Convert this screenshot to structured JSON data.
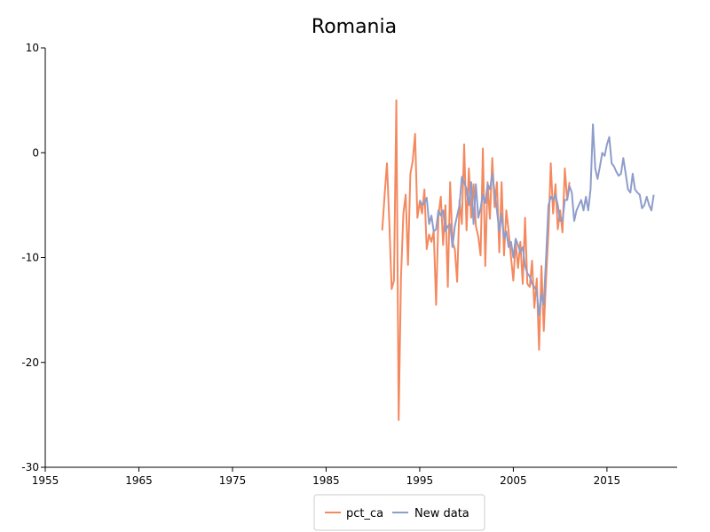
{
  "chart_data": {
    "type": "line",
    "title": "Romania",
    "xlabel": "",
    "ylabel": "",
    "xlim": [
      1955,
      2022.5
    ],
    "ylim": [
      -30,
      10
    ],
    "xticks": [
      1955,
      1965,
      1975,
      1985,
      1995,
      2005,
      2015
    ],
    "yticks": [
      10,
      0,
      -10,
      -20,
      -30
    ],
    "grid": false,
    "legend_position": "bottom",
    "series": [
      {
        "name": "pct_ca",
        "color": "#f4895f",
        "x": [
          1991.0,
          1991.25,
          1991.5,
          1991.75,
          1992.0,
          1992.25,
          1992.5,
          1992.75,
          1993.0,
          1993.25,
          1993.5,
          1993.75,
          1994.0,
          1994.25,
          1994.5,
          1994.75,
          1995.0,
          1995.25,
          1995.5,
          1995.75,
          1996.0,
          1996.25,
          1996.5,
          1996.75,
          1997.0,
          1997.25,
          1997.5,
          1997.75,
          1998.0,
          1998.25,
          1998.5,
          1998.75,
          1999.0,
          1999.25,
          1999.5,
          1999.75,
          2000.0,
          2000.25,
          2000.5,
          2000.75,
          2001.0,
          2001.25,
          2001.5,
          2001.75,
          2002.0,
          2002.25,
          2002.5,
          2002.75,
          2003.0,
          2003.25,
          2003.5,
          2003.75,
          2004.0,
          2004.25,
          2004.5,
          2004.75,
          2005.0,
          2005.25,
          2005.5,
          2005.75,
          2006.0,
          2006.25,
          2006.5,
          2006.75,
          2007.0,
          2007.25,
          2007.5,
          2007.75,
          2008.0,
          2008.25,
          2008.5,
          2008.75,
          2009.0,
          2009.25,
          2009.5,
          2009.75,
          2010.0,
          2010.25,
          2010.5,
          2010.75,
          2011.0
        ],
        "y": [
          -7.4,
          -4.0,
          -1.0,
          -6.5,
          -13.0,
          -12.2,
          5.0,
          -25.5,
          -12.0,
          -5.8,
          -4.0,
          -10.7,
          -2.0,
          -0.8,
          1.8,
          -6.2,
          -4.7,
          -5.8,
          -3.5,
          -9.2,
          -7.8,
          -8.5,
          -7.5,
          -14.5,
          -6.0,
          -4.2,
          -8.8,
          -5.0,
          -12.8,
          -2.8,
          -8.5,
          -9.2,
          -12.3,
          -4.5,
          -6.8,
          0.8,
          -7.4,
          -1.5,
          -6.2,
          -3.0,
          -7.0,
          -8.0,
          -9.8,
          0.4,
          -10.8,
          -2.8,
          -6.3,
          -0.5,
          -5.2,
          -2.8,
          -9.5,
          -2.8,
          -9.8,
          -5.5,
          -7.5,
          -10.0,
          -12.2,
          -8.5,
          -11.0,
          -8.5,
          -12.5,
          -6.2,
          -12.5,
          -12.8,
          -10.3,
          -14.8,
          -12.0,
          -18.8,
          -10.8,
          -17.0,
          -12.0,
          -7.5,
          -1.0,
          -5.8,
          -3.0,
          -7.3,
          -5.5,
          -7.6,
          -1.5,
          -4.5,
          -2.8
        ]
      },
      {
        "name": "New data",
        "color": "#8e9dcb",
        "x": [
          1995.0,
          1995.25,
          1995.5,
          1995.75,
          1996.0,
          1996.25,
          1996.5,
          1996.75,
          1997.0,
          1997.25,
          1997.5,
          1997.75,
          1998.0,
          1998.25,
          1998.5,
          1998.75,
          1999.0,
          1999.25,
          1999.5,
          1999.75,
          2000.0,
          2000.25,
          2000.5,
          2000.75,
          2001.0,
          2001.25,
          2001.5,
          2001.75,
          2002.0,
          2002.25,
          2002.5,
          2002.75,
          2003.0,
          2003.25,
          2003.5,
          2003.75,
          2004.0,
          2004.25,
          2004.5,
          2004.75,
          2005.0,
          2005.25,
          2005.5,
          2005.75,
          2006.0,
          2006.25,
          2006.5,
          2006.75,
          2007.0,
          2007.25,
          2007.5,
          2007.75,
          2008.0,
          2008.25,
          2008.5,
          2008.75,
          2009.0,
          2009.25,
          2009.5,
          2009.75,
          2010.0,
          2010.25,
          2010.5,
          2010.75,
          2011.0,
          2011.25,
          2011.5,
          2011.75,
          2012.0,
          2012.25,
          2012.5,
          2012.75,
          2013.0,
          2013.25,
          2013.5,
          2013.75,
          2014.0,
          2014.25,
          2014.5,
          2014.75,
          2015.0,
          2015.25,
          2015.5,
          2015.75,
          2016.0,
          2016.25,
          2016.5,
          2016.75,
          2017.0,
          2017.25,
          2017.5,
          2017.75,
          2018.0,
          2018.25,
          2018.5,
          2018.75,
          2019.0,
          2019.25,
          2019.5,
          2019.75,
          2020.0
        ],
        "y": [
          -4.5,
          -5.0,
          -4.8,
          -4.3,
          -6.8,
          -6.0,
          -7.5,
          -7.3,
          -5.5,
          -6.0,
          -5.5,
          -7.5,
          -7.0,
          -6.8,
          -9.0,
          -7.0,
          -6.0,
          -5.0,
          -2.3,
          -2.8,
          -3.5,
          -5.0,
          -2.8,
          -6.8,
          -3.0,
          -6.2,
          -5.3,
          -4.0,
          -4.8,
          -3.0,
          -3.5,
          -2.0,
          -3.8,
          -5.5,
          -7.5,
          -5.8,
          -8.2,
          -7.5,
          -9.0,
          -8.5,
          -10.0,
          -8.2,
          -8.8,
          -9.5,
          -9.0,
          -10.8,
          -11.5,
          -11.8,
          -12.5,
          -12.8,
          -13.2,
          -15.5,
          -13.5,
          -14.5,
          -10.0,
          -5.0,
          -4.2,
          -4.5,
          -4.0,
          -5.0,
          -6.5,
          -6.5,
          -4.5,
          -4.5,
          -3.2,
          -3.8,
          -6.5,
          -5.5,
          -5.0,
          -4.5,
          -5.5,
          -4.2,
          -5.5,
          -3.5,
          2.7,
          -1.5,
          -2.5,
          -1.3,
          0.0,
          -0.3,
          0.8,
          1.5,
          -1.0,
          -1.3,
          -1.8,
          -2.2,
          -2.0,
          -0.5,
          -2.0,
          -3.5,
          -3.8,
          -2.0,
          -3.5,
          -3.8,
          -4.0,
          -5.3,
          -5.0,
          -4.2,
          -5.0,
          -5.5,
          -4.0
        ]
      }
    ]
  }
}
